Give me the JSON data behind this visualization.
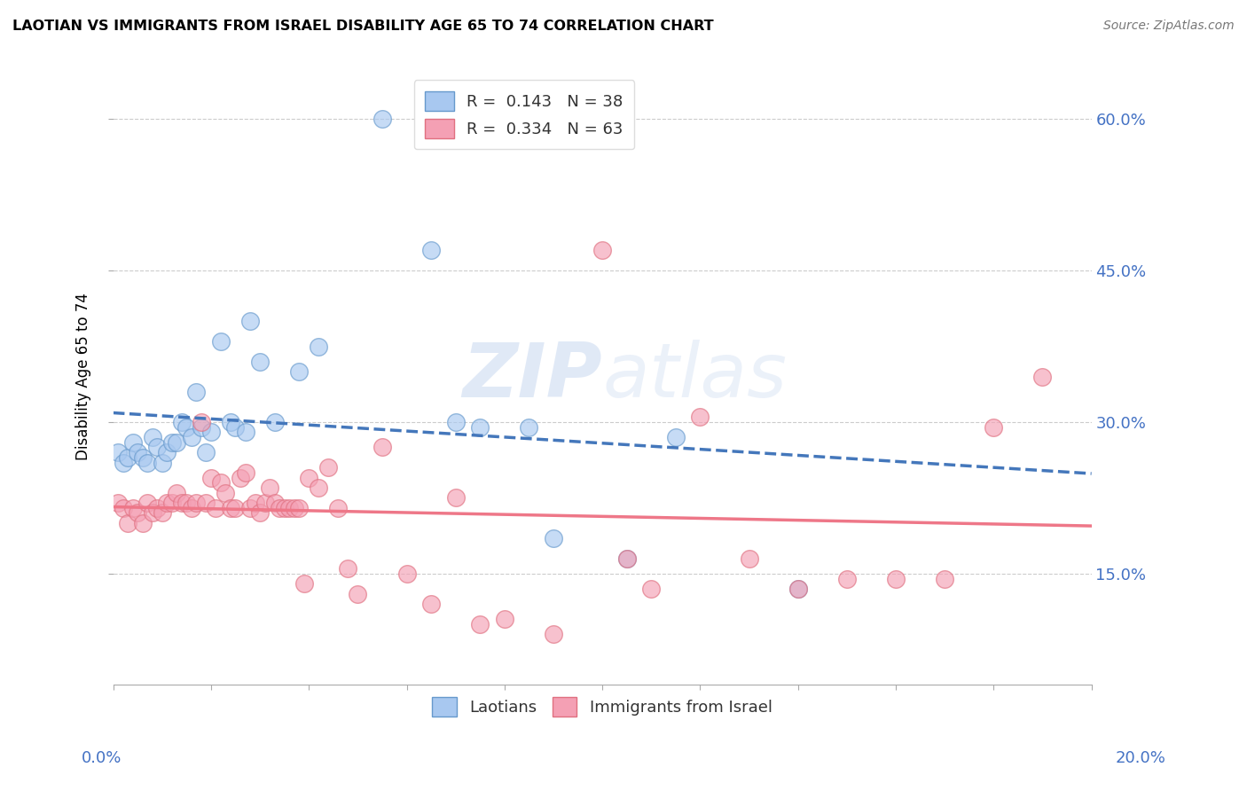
{
  "title": "LAOTIAN VS IMMIGRANTS FROM ISRAEL DISABILITY AGE 65 TO 74 CORRELATION CHART",
  "source": "Source: ZipAtlas.com",
  "ylabel": "Disability Age 65 to 74",
  "ytick_values": [
    0.15,
    0.3,
    0.45,
    0.6
  ],
  "xlim": [
    0.0,
    0.2
  ],
  "ylim": [
    0.04,
    0.65
  ],
  "legend_r1": "R = 0.143",
  "legend_n1": "N = 38",
  "legend_r2": "R = 0.334",
  "legend_n2": "N = 63",
  "color_laotian": "#A8C8F0",
  "color_israel": "#F4A0B4",
  "border_laotian": "#6699CC",
  "border_israel": "#E07080",
  "trendline_laotian_color": "#4477BB",
  "trendline_israel_color": "#EE7788",
  "watermark": "ZIPatlas",
  "laotian_x": [
    0.001,
    0.002,
    0.003,
    0.004,
    0.005,
    0.006,
    0.007,
    0.008,
    0.009,
    0.01,
    0.011,
    0.012,
    0.013,
    0.014,
    0.015,
    0.016,
    0.017,
    0.018,
    0.019,
    0.02,
    0.022,
    0.024,
    0.025,
    0.027,
    0.028,
    0.03,
    0.033,
    0.038,
    0.042,
    0.055,
    0.065,
    0.07,
    0.075,
    0.085,
    0.09,
    0.105,
    0.115,
    0.14
  ],
  "laotian_y": [
    0.27,
    0.26,
    0.265,
    0.28,
    0.27,
    0.265,
    0.26,
    0.285,
    0.275,
    0.26,
    0.27,
    0.28,
    0.28,
    0.3,
    0.295,
    0.285,
    0.33,
    0.295,
    0.27,
    0.29,
    0.38,
    0.3,
    0.295,
    0.29,
    0.4,
    0.36,
    0.3,
    0.35,
    0.375,
    0.6,
    0.47,
    0.3,
    0.295,
    0.295,
    0.185,
    0.165,
    0.285,
    0.135
  ],
  "israel_x": [
    0.001,
    0.002,
    0.003,
    0.004,
    0.005,
    0.006,
    0.007,
    0.008,
    0.009,
    0.01,
    0.011,
    0.012,
    0.013,
    0.014,
    0.015,
    0.016,
    0.017,
    0.018,
    0.019,
    0.02,
    0.021,
    0.022,
    0.023,
    0.024,
    0.025,
    0.026,
    0.027,
    0.028,
    0.029,
    0.03,
    0.031,
    0.032,
    0.033,
    0.034,
    0.035,
    0.036,
    0.037,
    0.038,
    0.039,
    0.04,
    0.042,
    0.044,
    0.046,
    0.048,
    0.05,
    0.055,
    0.06,
    0.065,
    0.07,
    0.075,
    0.08,
    0.09,
    0.1,
    0.105,
    0.11,
    0.12,
    0.13,
    0.14,
    0.15,
    0.16,
    0.17,
    0.18,
    0.19
  ],
  "israel_y": [
    0.22,
    0.215,
    0.2,
    0.215,
    0.21,
    0.2,
    0.22,
    0.21,
    0.215,
    0.21,
    0.22,
    0.22,
    0.23,
    0.22,
    0.22,
    0.215,
    0.22,
    0.3,
    0.22,
    0.245,
    0.215,
    0.24,
    0.23,
    0.215,
    0.215,
    0.245,
    0.25,
    0.215,
    0.22,
    0.21,
    0.22,
    0.235,
    0.22,
    0.215,
    0.215,
    0.215,
    0.215,
    0.215,
    0.14,
    0.245,
    0.235,
    0.255,
    0.215,
    0.155,
    0.13,
    0.275,
    0.15,
    0.12,
    0.225,
    0.1,
    0.105,
    0.09,
    0.47,
    0.165,
    0.135,
    0.305,
    0.165,
    0.135,
    0.145,
    0.145,
    0.145,
    0.295,
    0.345
  ]
}
